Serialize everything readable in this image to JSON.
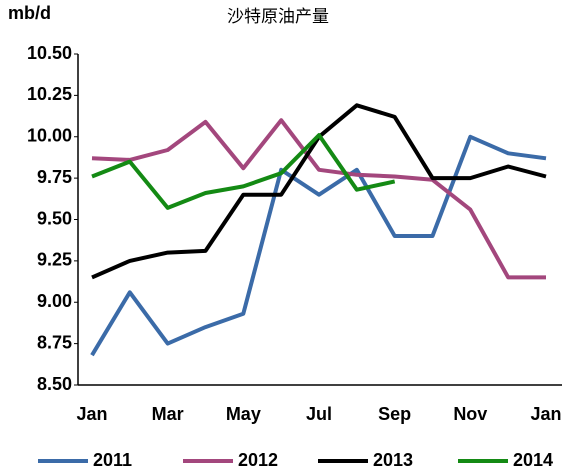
{
  "chart_data": {
    "type": "line",
    "title": "沙特原油产量",
    "y_label": "mb/d",
    "categories": [
      "Jan",
      null,
      "Mar",
      null,
      "May",
      null,
      "Jul",
      null,
      "Sep",
      null,
      "Nov",
      null,
      "Jan"
    ],
    "ylim": [
      8.5,
      10.5
    ],
    "yticks": [
      {
        "value": 8.5,
        "label": "8.50"
      },
      {
        "value": 8.75,
        "label": "8.75"
      },
      {
        "value": 9,
        "label": "9.00"
      },
      {
        "value": 9.25,
        "label": "9.25"
      },
      {
        "value": 9.5,
        "label": "9.50"
      },
      {
        "value": 9.75,
        "label": "9.75"
      },
      {
        "value": 10,
        "label": "10.00"
      },
      {
        "value": 10.25,
        "label": "10.25"
      },
      {
        "value": 10.5,
        "label": "10.50"
      }
    ],
    "grid": false,
    "legend": "bottom",
    "series": [
      {
        "name": "2011",
        "color": "#3b6ba8",
        "values": [
          8.68,
          9.06,
          8.75,
          8.85,
          8.93,
          9.8,
          9.65,
          9.8,
          9.4,
          9.4,
          10.0,
          9.9,
          9.87
        ]
      },
      {
        "name": "2012",
        "color": "#a3477d",
        "values": [
          9.87,
          9.86,
          9.92,
          10.09,
          9.81,
          10.1,
          9.8,
          9.77,
          9.76,
          9.74,
          9.56,
          9.15,
          9.15
        ]
      },
      {
        "name": "2013",
        "color": "#000000",
        "values": [
          9.15,
          9.25,
          9.3,
          9.31,
          9.65,
          9.65,
          10.0,
          10.19,
          10.12,
          9.75,
          9.75,
          9.82,
          9.76
        ]
      },
      {
        "name": "2014",
        "color": "#148a14",
        "values": [
          9.76,
          9.85,
          9.57,
          9.66,
          9.7,
          9.78,
          10.01,
          9.68,
          9.73,
          null,
          null,
          null,
          null
        ]
      }
    ]
  }
}
